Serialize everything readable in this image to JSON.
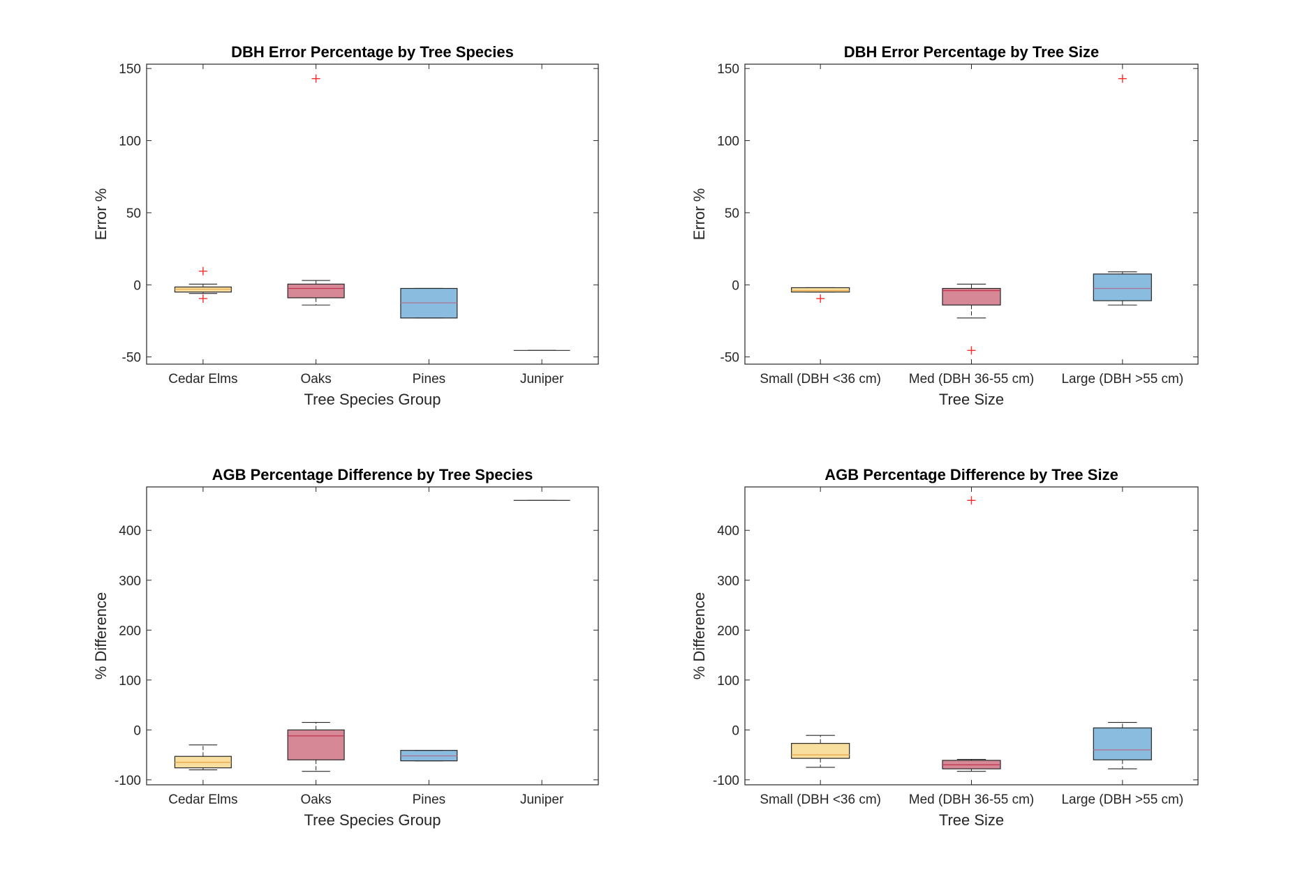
{
  "chart_data": [
    {
      "type": "box",
      "title": "DBH Error Percentage by Tree Species",
      "xlabel": "Tree Species Group",
      "ylabel": "Error %",
      "ylim": [
        -55,
        153
      ],
      "yticks": [
        -50,
        0,
        50,
        100,
        150
      ],
      "categories": [
        "Cedar Elms",
        "Oaks",
        "Pines",
        "Juniper"
      ],
      "colors": [
        "#f6ce6c",
        "#c0485e",
        "#4b98cf",
        "#4b98cf"
      ],
      "median_colors": [
        "#e8a84a",
        "#c2334f",
        "#b07290",
        "#404040"
      ],
      "boxes": [
        {
          "whisker_low": -6,
          "q1": -5,
          "median": -3,
          "q3": -1.5,
          "whisker_high": 0.5,
          "outliers": [
            9.5,
            -9.5
          ]
        },
        {
          "whisker_low": -14,
          "q1": -9,
          "median": -2.5,
          "q3": 0.5,
          "whisker_high": 3,
          "outliers": [
            143
          ]
        },
        {
          "whisker_low": -23,
          "q1": -23,
          "median": -12.5,
          "q3": -2.5,
          "whisker_high": -2.5,
          "outliers": []
        },
        {
          "whisker_low": -45.5,
          "q1": -45.5,
          "median": -45.5,
          "q3": -45.5,
          "whisker_high": -45.5,
          "outliers": []
        }
      ]
    },
    {
      "type": "box",
      "title": "DBH Error Percentage by Tree Size",
      "xlabel": "Tree Size",
      "ylabel": "Error %",
      "ylim": [
        -55,
        153
      ],
      "yticks": [
        -50,
        0,
        50,
        100,
        150
      ],
      "categories": [
        "Small (DBH <36 cm)",
        "Med (DBH 36-55 cm)",
        "Large (DBH >55 cm)"
      ],
      "colors": [
        "#f6ce6c",
        "#c0485e",
        "#4b98cf"
      ],
      "median_colors": [
        "#e8a84a",
        "#c2334f",
        "#b07290"
      ],
      "boxes": [
        {
          "whisker_low": -5,
          "q1": -5,
          "median": -4,
          "q3": -2,
          "whisker_high": -2,
          "outliers": [
            -9.5
          ]
        },
        {
          "whisker_low": -23,
          "q1": -14,
          "median": -4,
          "q3": -2.5,
          "whisker_high": 0.5,
          "outliers": [
            -45.5
          ]
        },
        {
          "whisker_low": -14,
          "q1": -11,
          "median": -2.5,
          "q3": 7.5,
          "whisker_high": 9,
          "outliers": [
            143
          ]
        }
      ]
    },
    {
      "type": "box",
      "title": "AGB Percentage Difference by Tree Species",
      "xlabel": "Tree Species Group",
      "ylabel": "% Difference",
      "ylim": [
        -110,
        487
      ],
      "yticks": [
        -100,
        0,
        100,
        200,
        300,
        400
      ],
      "categories": [
        "Cedar Elms",
        "Oaks",
        "Pines",
        "Juniper"
      ],
      "colors": [
        "#f6ce6c",
        "#c0485e",
        "#4b98cf",
        "#4b98cf"
      ],
      "median_colors": [
        "#e8a84a",
        "#c2334f",
        "#b07290",
        "#404040"
      ],
      "boxes": [
        {
          "whisker_low": -80,
          "q1": -76,
          "median": -65,
          "q3": -53,
          "whisker_high": -30,
          "outliers": []
        },
        {
          "whisker_low": -83,
          "q1": -60,
          "median": -12,
          "q3": 0,
          "whisker_high": 15,
          "outliers": []
        },
        {
          "whisker_low": -62,
          "q1": -62,
          "median": -52,
          "q3": -41,
          "whisker_high": -41,
          "outliers": []
        },
        {
          "whisker_low": 460,
          "q1": 460,
          "median": 460,
          "q3": 460,
          "whisker_high": 460,
          "outliers": []
        }
      ]
    },
    {
      "type": "box",
      "title": "AGB Percentage Difference by Tree Size",
      "xlabel": "Tree Size",
      "ylabel": "% Difference",
      "ylim": [
        -110,
        487
      ],
      "yticks": [
        -100,
        0,
        100,
        200,
        300,
        400
      ],
      "categories": [
        "Small (DBH <36 cm)",
        "Med (DBH 36-55 cm)",
        "Large (DBH >55 cm)"
      ],
      "colors": [
        "#f6ce6c",
        "#c0485e",
        "#4b98cf"
      ],
      "median_colors": [
        "#e8a84a",
        "#c2334f",
        "#b07290"
      ],
      "boxes": [
        {
          "whisker_low": -75,
          "q1": -57,
          "median": -50,
          "q3": -27,
          "whisker_high": -11,
          "outliers": []
        },
        {
          "whisker_low": -83,
          "q1": -78,
          "median": -70,
          "q3": -61,
          "whisker_high": -59,
          "outliers": [
            460
          ]
        },
        {
          "whisker_low": -78,
          "q1": -60,
          "median": -40,
          "q3": 4,
          "whisker_high": 15,
          "outliers": []
        }
      ]
    }
  ]
}
